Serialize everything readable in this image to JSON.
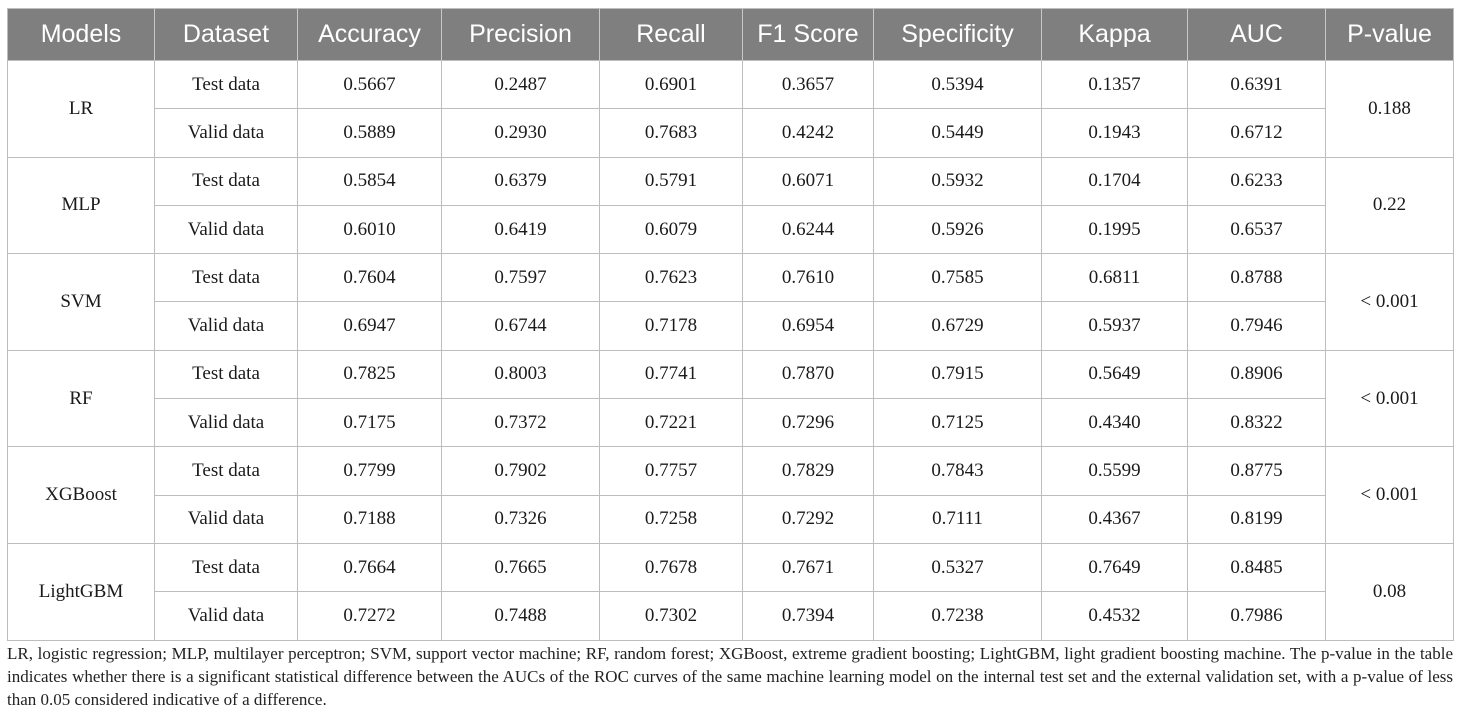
{
  "table": {
    "headers": [
      "Models",
      "Dataset",
      "Accuracy",
      "Precision",
      "Recall",
      "F1 Score",
      "Specificity",
      "Kappa",
      "AUC",
      "P-value"
    ],
    "models": [
      {
        "name": "LR",
        "p_value": "0.188",
        "rows": [
          {
            "dataset": "Test data",
            "values": [
              "0.5667",
              "0.2487",
              "0.6901",
              "0.3657",
              "0.5394",
              "0.1357",
              "0.6391"
            ]
          },
          {
            "dataset": "Valid data",
            "values": [
              "0.5889",
              "0.2930",
              "0.7683",
              "0.4242",
              "0.5449",
              "0.1943",
              "0.6712"
            ]
          }
        ]
      },
      {
        "name": "MLP",
        "p_value": "0.22",
        "rows": [
          {
            "dataset": "Test data",
            "values": [
              "0.5854",
              "0.6379",
              "0.5791",
              "0.6071",
              "0.5932",
              "0.1704",
              "0.6233"
            ]
          },
          {
            "dataset": "Valid data",
            "values": [
              "0.6010",
              "0.6419",
              "0.6079",
              "0.6244",
              "0.5926",
              "0.1995",
              "0.6537"
            ]
          }
        ]
      },
      {
        "name": "SVM",
        "p_value": "< 0.001",
        "rows": [
          {
            "dataset": "Test data",
            "values": [
              "0.7604",
              "0.7597",
              "0.7623",
              "0.7610",
              "0.7585",
              "0.6811",
              "0.8788"
            ]
          },
          {
            "dataset": "Valid data",
            "values": [
              "0.6947",
              "0.6744",
              "0.7178",
              "0.6954",
              "0.6729",
              "0.5937",
              "0.7946"
            ]
          }
        ]
      },
      {
        "name": "RF",
        "p_value": "< 0.001",
        "rows": [
          {
            "dataset": "Test data",
            "values": [
              "0.7825",
              "0.8003",
              "0.7741",
              "0.7870",
              "0.7915",
              "0.5649",
              "0.8906"
            ]
          },
          {
            "dataset": "Valid data",
            "values": [
              "0.7175",
              "0.7372",
              "0.7221",
              "0.7296",
              "0.7125",
              "0.4340",
              "0.8322"
            ]
          }
        ]
      },
      {
        "name": "XGBoost",
        "p_value": "< 0.001",
        "rows": [
          {
            "dataset": "Test data",
            "values": [
              "0.7799",
              "0.7902",
              "0.7757",
              "0.7829",
              "0.7843",
              "0.5599",
              "0.8775"
            ]
          },
          {
            "dataset": "Valid data",
            "values": [
              "0.7188",
              "0.7326",
              "0.7258",
              "0.7292",
              "0.7111",
              "0.4367",
              "0.8199"
            ]
          }
        ]
      },
      {
        "name": "LightGBM",
        "p_value": "0.08",
        "rows": [
          {
            "dataset": "Test data",
            "values": [
              "0.7664",
              "0.7665",
              "0.7678",
              "0.7671",
              "0.5327",
              "0.7649",
              "0.8485"
            ]
          },
          {
            "dataset": "Valid data",
            "values": [
              "0.7272",
              "0.7488",
              "0.7302",
              "0.7394",
              "0.7238",
              "0.4532",
              "0.7986"
            ]
          }
        ]
      }
    ]
  },
  "caption": "LR, logistic regression; MLP, multilayer perceptron; SVM, support vector machine; RF, random forest; XGBoost, extreme gradient boosting; LightGBM, light gradient boosting machine. The p-value in the table indicates whether there is a significant statistical difference between the AUCs of the ROC curves of the same machine learning model on the internal test set and the external validation set, with a p-value of less than 0.05 considered indicative of a difference."
}
